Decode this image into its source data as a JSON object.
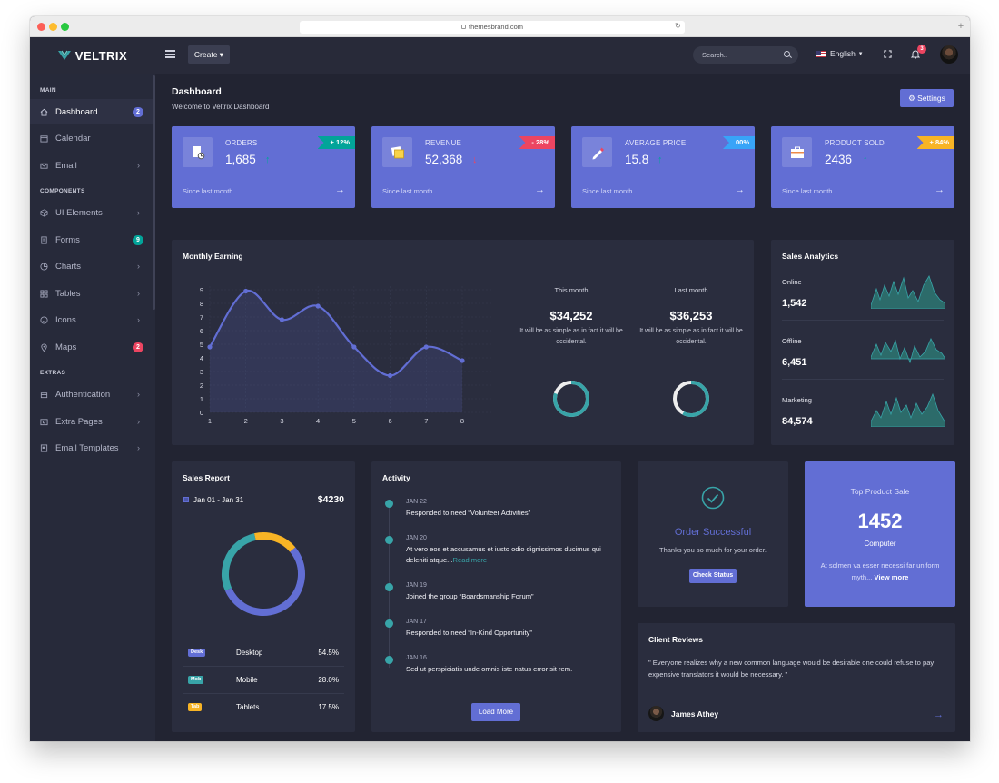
{
  "browser": {
    "url": "themesbrand.com"
  },
  "brand": {
    "name": "VELTRIX"
  },
  "sidebar": {
    "sections": [
      "MAIN",
      "COMPONENTS",
      "EXTRAS"
    ],
    "items": [
      {
        "label": "Dashboard",
        "badge": "2",
        "icon": "home-icon"
      },
      {
        "label": "Calendar",
        "icon": "calendar-icon"
      },
      {
        "label": "Email",
        "icon": "mail-icon"
      },
      {
        "label": "UI Elements",
        "icon": "cube-icon"
      },
      {
        "label": "Forms",
        "badge": "9",
        "icon": "form-icon"
      },
      {
        "label": "Charts",
        "icon": "pie-chart-icon"
      },
      {
        "label": "Tables",
        "icon": "grid-icon"
      },
      {
        "label": "Icons",
        "icon": "smile-icon"
      },
      {
        "label": "Maps",
        "badge": "2",
        "icon": "map-pin-icon"
      },
      {
        "label": "Authentication",
        "icon": "lock-icon"
      },
      {
        "label": "Extra Pages",
        "icon": "file-icon"
      },
      {
        "label": "Email Templates",
        "icon": "template-icon"
      }
    ]
  },
  "topbar": {
    "create_label": "Create",
    "search_placeholder": "Search..",
    "language": "English",
    "notifications": "3"
  },
  "header": {
    "title": "Dashboard",
    "subtitle": "Welcome to Veltrix Dashboard",
    "settings_label": "Settings"
  },
  "stats": [
    {
      "label": "ORDERS",
      "value": "1,685",
      "change": "+ 12%",
      "trend": "up",
      "ribbon_color": "#02a499",
      "footer": "Since last month"
    },
    {
      "label": "REVENUE",
      "value": "52,368",
      "change": "- 28%",
      "trend": "down",
      "ribbon_color": "#ec4561",
      "footer": "Since last month"
    },
    {
      "label": "AVERAGE PRICE",
      "value": "15.8",
      "change": "00%",
      "trend": "up",
      "ribbon_color": "#38a4f8",
      "footer": "Since last month"
    },
    {
      "label": "PRODUCT SOLD",
      "value": "2436",
      "change": "+ 84%",
      "trend": "up",
      "ribbon_color": "#f8b425",
      "footer": "Since last month"
    }
  ],
  "monthly_earning": {
    "title": "Monthly Earning",
    "this_month": {
      "label": "This month",
      "value": "$34,252",
      "text": "It will be as simple as in fact it will be occidental.",
      "percent": 0.8
    },
    "last_month": {
      "label": "Last month",
      "value": "$36,253",
      "text": "It will be as simple as in fact it will be occidental.",
      "percent": 0.58
    }
  },
  "chart_data": {
    "type": "line",
    "x": [
      1,
      2,
      3,
      4,
      5,
      6,
      7,
      8
    ],
    "values": [
      4.8,
      8.9,
      6.8,
      7.8,
      4.8,
      2.7,
      4.8,
      3.8
    ],
    "xlim": [
      1,
      8
    ],
    "ylim": [
      0,
      9
    ],
    "yticks": [
      0,
      1,
      2,
      3,
      4,
      5,
      6,
      7,
      8,
      9
    ],
    "grid": true,
    "color": "#626ed4"
  },
  "sales_analytics": {
    "title": "Sales Analytics",
    "rows": [
      {
        "label": "Online",
        "value": "1,542"
      },
      {
        "label": "Offline",
        "value": "6,451"
      },
      {
        "label": "Marketing",
        "value": "84,574"
      }
    ]
  },
  "sales_report": {
    "title": "Sales Report",
    "range": "Jan 01 - Jan 31",
    "total": "$4230",
    "rows": [
      {
        "tag": "Desk",
        "name": "Desktop",
        "pct": "54.5%",
        "color": "#626ed4",
        "share": 54.5
      },
      {
        "tag": "Mob",
        "name": "Mobile",
        "pct": "28.0%",
        "color": "#38a4a8",
        "share": 28.0
      },
      {
        "tag": "Tab",
        "name": "Tablets",
        "pct": "17.5%",
        "color": "#f8b425",
        "share": 17.5
      }
    ]
  },
  "activity": {
    "title": "Activity",
    "items": [
      {
        "date": "JAN 22",
        "text": "Responded to need “Volunteer Activities”"
      },
      {
        "date": "JAN 20",
        "text": "At vero eos et accusamus et iusto odio dignissimos ducimus qui deleniti atque...",
        "link": "Read more"
      },
      {
        "date": "JAN 19",
        "text": "Joined the group “Boardsmanship Forum”"
      },
      {
        "date": "JAN 17",
        "text": "Responded to need “In-Kind Opportunity”"
      },
      {
        "date": "JAN 16",
        "text": "Sed ut perspiciatis unde omnis iste natus error sit rem."
      }
    ],
    "load_more": "Load More"
  },
  "order": {
    "title": "Order Successful",
    "text": "Thanks you so much for your order.",
    "button": "Check Status"
  },
  "top_product": {
    "label": "Top Product Sale",
    "value": "1452",
    "name": "Computer",
    "text": "At solmen va esser necessi far uniform myth...",
    "link": "View more"
  },
  "reviews": {
    "title": "Client Reviews",
    "text": "\" Everyone realizes why a new common language would be desirable one could refuse to pay expensive translators it would be necessary. \"",
    "author": "James Athey"
  }
}
